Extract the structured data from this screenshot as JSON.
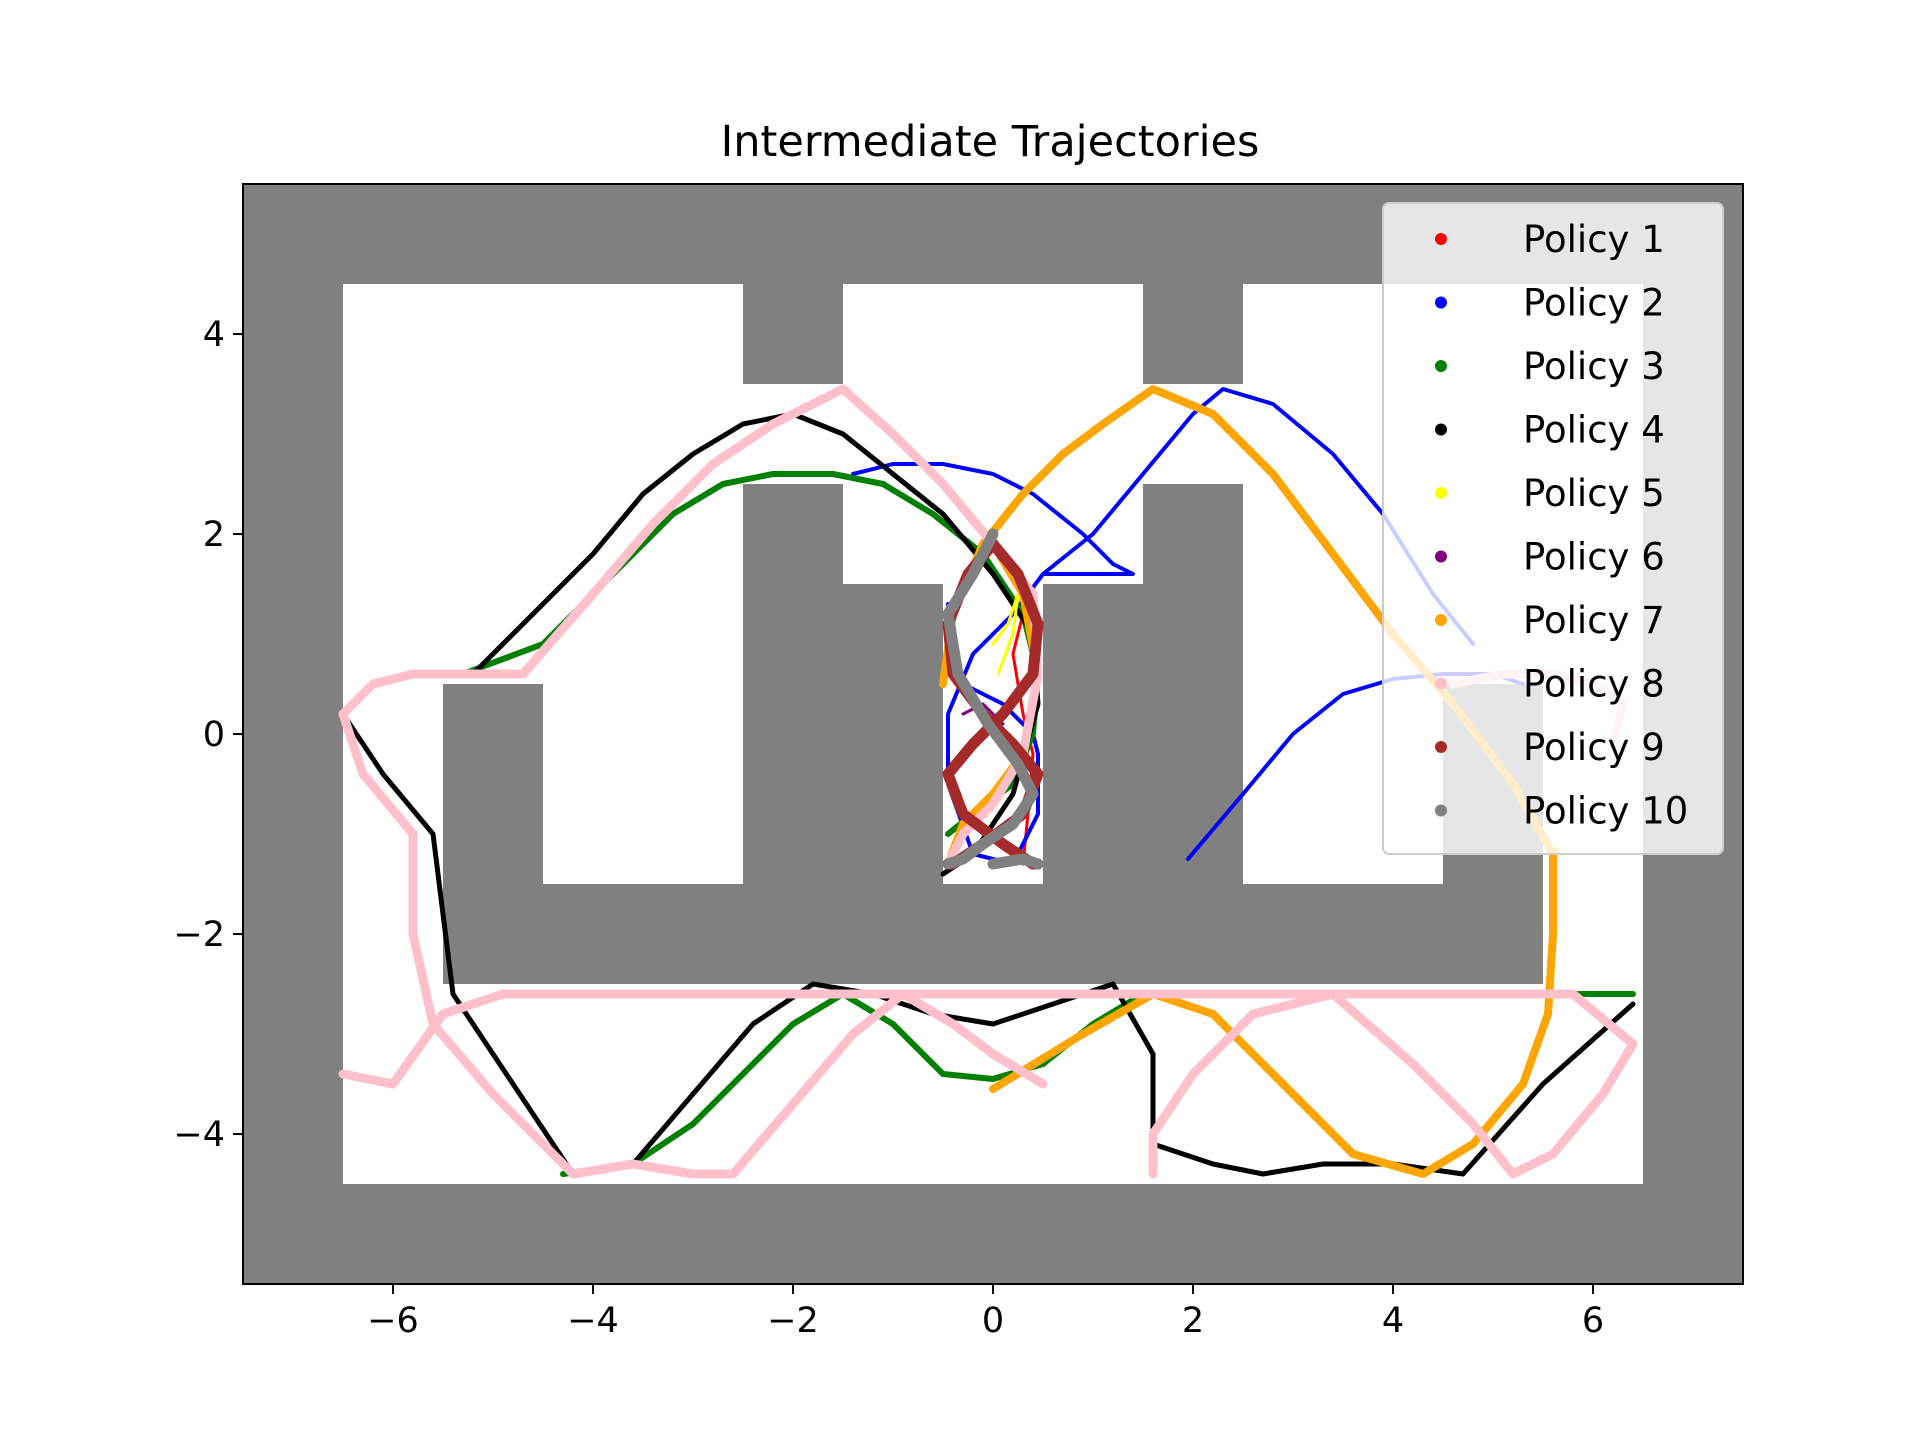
{
  "chart_data": {
    "type": "scatter",
    "title": "Intermediate Trajectories",
    "xlabel": "",
    "ylabel": "",
    "xlim": [
      -7.5,
      7.5
    ],
    "ylim": [
      -5.5,
      5.5
    ],
    "xticks": [
      -6,
      -4,
      -2,
      0,
      2,
      4,
      6
    ],
    "yticks": [
      -4,
      -2,
      0,
      2,
      4
    ],
    "xtick_labels": [
      "−6",
      "−4",
      "−2",
      "0",
      "2",
      "4",
      "6"
    ],
    "ytick_labels": [
      "−4",
      "−2",
      "0",
      "2",
      "4"
    ],
    "grid": false,
    "legend_position": "top-right",
    "background_color": "#808080",
    "free_space_color": "#ffffff",
    "free_space": [
      {
        "x0": -6.5,
        "x1": -2.5,
        "y0": -1.5,
        "y1": 4.5
      },
      {
        "x0": -2.5,
        "x1": -1.5,
        "y0": 2.5,
        "y1": 3.5
      },
      {
        "x0": -1.5,
        "x1": 1.5,
        "y0": 2.5,
        "y1": 4.5
      },
      {
        "x0": -1.5,
        "x1": -0.5,
        "y0": 1.5,
        "y1": 2.5
      },
      {
        "x0": -0.5,
        "x1": 0.5,
        "y0": -1.5,
        "y1": 2.5
      },
      {
        "x0": 0.5,
        "x1": 1.5,
        "y0": 1.5,
        "y1": 2.5
      },
      {
        "x0": 1.5,
        "x1": 2.5,
        "y0": 2.5,
        "y1": 3.5
      },
      {
        "x0": 2.5,
        "x1": 6.5,
        "y0": -1.5,
        "y1": 4.5
      },
      {
        "x0": -6.5,
        "x1": 6.5,
        "y0": -4.5,
        "y1": -2.5
      },
      {
        "x0": -6.5,
        "x1": -5.5,
        "y0": -2.5,
        "y1": -1.5
      },
      {
        "x0": 5.5,
        "x1": 6.5,
        "y0": -2.5,
        "y1": -1.5
      },
      {
        "x0": -0.5,
        "x1": 0.5,
        "y0": -3.5,
        "y1": -4.5
      }
    ],
    "obstacles_in_free_space": [
      {
        "x0": -5.5,
        "x1": -4.5,
        "y0": -1.5,
        "y1": 0.5
      },
      {
        "x0": -2.5,
        "x1": -1.5,
        "y0": 0.5,
        "y1": 2.5
      },
      {
        "x0": -1.5,
        "x1": -0.5,
        "y0": -1.5,
        "y1": 1.5
      },
      {
        "x0": 0.5,
        "x1": 1.5,
        "y0": -1.5,
        "y1": 1.5
      },
      {
        "x0": 1.5,
        "x1": 2.5,
        "y0": 0.5,
        "y1": 2.5
      },
      {
        "x0": 4.5,
        "x1": 5.5,
        "y0": -1.5,
        "y1": 0.5
      },
      {
        "x0": -2.5,
        "x1": -1.5,
        "y0": 3.5,
        "y1": 4.5
      },
      {
        "x0": 1.5,
        "x1": 2.5,
        "y0": 3.5,
        "y1": 4.5
      }
    ],
    "series": [
      {
        "name": "Policy 1",
        "color": "#ff0000",
        "width": 3,
        "x": [
          0.3,
          0.35,
          0.4,
          0.3,
          0.2,
          0.3,
          0.35
        ],
        "y": [
          -1.3,
          -0.8,
          -0.2,
          0.2,
          0.8,
          1.2,
          1.5
        ]
      },
      {
        "name": "Policy 2",
        "color": "#0000ff",
        "width": 4,
        "x": [
          -1.4,
          -1.0,
          -0.5,
          0.0,
          0.4,
          0.9,
          1.2,
          1.4,
          1.0,
          0.5,
          0.2,
          -0.2,
          -0.45,
          -0.45,
          -0.2,
          0.2,
          0.45,
          0.45,
          0.4,
          0.1,
          -0.3,
          -0.45
        ],
        "y": [
          2.6,
          2.7,
          2.7,
          2.6,
          2.4,
          2.0,
          1.7,
          1.6,
          1.6,
          1.6,
          1.2,
          0.8,
          0.2,
          -0.5,
          -1.2,
          -1.3,
          -0.8,
          -0.2,
          0.0,
          0.3,
          0.5,
          1.3
        ]
      },
      {
        "name": "Policy 2",
        "color": "#0000ff",
        "width": 4,
        "legend": false,
        "x": [
          0.5,
          1.0,
          1.5,
          2.0,
          2.3,
          2.8,
          3.4,
          3.9,
          4.4,
          4.8
        ],
        "y": [
          1.6,
          2.0,
          2.6,
          3.2,
          3.45,
          3.3,
          2.8,
          2.2,
          1.4,
          0.9
        ]
      },
      {
        "name": "Policy 2",
        "color": "#0000ff",
        "width": 4,
        "legend": false,
        "x": [
          1.95,
          2.5,
          3.0,
          3.5,
          4.0,
          4.5,
          5.0,
          5.3
        ],
        "y": [
          -1.25,
          -0.6,
          0.0,
          0.4,
          0.55,
          0.6,
          0.6,
          0.5
        ]
      },
      {
        "name": "Policy 3",
        "color": "#008000",
        "width": 6,
        "x": [
          -5.3,
          -4.5,
          -3.8,
          -3.2,
          -2.7,
          -2.2,
          -1.6,
          -1.1,
          -0.6,
          -0.1,
          0.3,
          0.45,
          0.4,
          0.2,
          -0.2,
          -0.45
        ],
        "y": [
          0.6,
          0.9,
          1.6,
          2.2,
          2.5,
          2.6,
          2.6,
          2.5,
          2.2,
          1.8,
          1.2,
          0.6,
          0.0,
          -0.5,
          -0.8,
          -1.0
        ]
      },
      {
        "name": "Policy 3",
        "color": "#008000",
        "width": 6,
        "legend": false,
        "x": [
          -4.3,
          -3.6,
          -3.0,
          -2.5,
          -2.0,
          -1.5,
          -1.0,
          -0.5,
          0.0,
          0.5,
          1.0,
          1.5,
          2.5,
          3.5,
          4.5,
          5.5,
          6.4
        ],
        "y": [
          -4.4,
          -4.3,
          -3.9,
          -3.4,
          -2.9,
          -2.6,
          -2.9,
          -3.4,
          -3.45,
          -3.3,
          -2.9,
          -2.6,
          -2.6,
          -2.6,
          -2.6,
          -2.6,
          -2.6
        ]
      },
      {
        "name": "Policy 4",
        "color": "#000000",
        "width": 5,
        "x": [
          -5.2,
          -4.6,
          -4.0,
          -3.5,
          -3.0,
          -2.5,
          -2.0,
          -1.5,
          -1.0,
          -0.5,
          0.0,
          0.4,
          0.45,
          0.2,
          -0.2,
          -0.5
        ],
        "y": [
          0.6,
          1.2,
          1.8,
          2.4,
          2.8,
          3.1,
          3.2,
          3.0,
          2.6,
          2.2,
          1.6,
          1.0,
          0.3,
          -0.6,
          -1.2,
          -1.4
        ]
      },
      {
        "name": "Policy 4",
        "color": "#000000",
        "width": 5,
        "legend": false,
        "x": [
          -6.5,
          -6.1,
          -5.6,
          -5.4,
          -5.0,
          -4.6,
          -4.2,
          -3.6,
          -3.0,
          -2.4,
          -1.8,
          -1.2,
          -0.6,
          0.0,
          0.6,
          1.2,
          1.6,
          1.6,
          2.2,
          2.7,
          3.3,
          4.0,
          4.7,
          5.5,
          6.4
        ],
        "y": [
          0.2,
          -0.4,
          -1.0,
          -2.6,
          -3.2,
          -3.8,
          -4.4,
          -4.3,
          -3.6,
          -2.9,
          -2.5,
          -2.6,
          -2.8,
          -2.9,
          -2.7,
          -2.5,
          -3.2,
          -4.1,
          -4.3,
          -4.4,
          -4.3,
          -4.3,
          -4.4,
          -3.5,
          -2.7
        ]
      },
      {
        "name": "Policy 5",
        "color": "#ffff00",
        "width": 3,
        "x": [
          0.0,
          0.15,
          0.25,
          0.2,
          0.05
        ],
        "y": [
          0.9,
          1.1,
          1.4,
          1.0,
          0.6
        ]
      },
      {
        "name": "Policy 6",
        "color": "#800080",
        "width": 3,
        "x": [
          -0.3,
          -0.1,
          0.1
        ],
        "y": [
          0.2,
          0.3,
          0.1
        ]
      },
      {
        "name": "Policy 7",
        "color": "#ffa500",
        "width": 8,
        "x": [
          -0.5,
          -0.4,
          -0.1,
          0.3,
          0.7,
          1.1,
          1.6,
          2.2,
          2.8,
          3.4,
          4.0,
          4.6,
          5.2,
          5.6,
          5.6,
          5.55,
          5.3,
          4.8,
          4.3,
          3.6,
          2.8,
          2.2,
          1.6,
          0.9,
          0.0
        ],
        "y": [
          0.5,
          1.2,
          1.9,
          2.4,
          2.8,
          3.1,
          3.45,
          3.2,
          2.6,
          1.8,
          1.0,
          0.3,
          -0.5,
          -1.2,
          -2.0,
          -2.8,
          -3.5,
          -4.1,
          -4.4,
          -4.2,
          -3.4,
          -2.8,
          -2.6,
          -3.0,
          -3.55
        ]
      },
      {
        "name": "Policy 7",
        "color": "#ffa500",
        "width": 8,
        "legend": false,
        "x": [
          0.0,
          0.3,
          0.45,
          0.3,
          0.0,
          -0.3,
          -0.45
        ],
        "y": [
          1.9,
          1.4,
          0.6,
          -0.2,
          -0.6,
          -0.9,
          -1.3
        ]
      },
      {
        "name": "Policy 8",
        "color": "#ffc0cb",
        "width": 9,
        "x": [
          -6.5,
          -6.2,
          -5.8,
          -5.2,
          -4.7,
          -4.0,
          -3.4,
          -2.8,
          -2.2,
          -1.5,
          -1.0,
          -0.5,
          0.0,
          0.4,
          0.45,
          0.3,
          0.0,
          -0.3,
          -0.45
        ],
        "y": [
          0.2,
          0.5,
          0.6,
          0.6,
          0.6,
          1.4,
          2.1,
          2.7,
          3.1,
          3.45,
          3.0,
          2.5,
          1.9,
          1.4,
          0.6,
          -0.2,
          -0.7,
          -1.0,
          -1.3
        ]
      },
      {
        "name": "Policy 8",
        "color": "#ffc0cb",
        "width": 9,
        "legend": false,
        "x": [
          -6.5,
          -6.3,
          -5.8,
          -5.8,
          -5.6,
          -5.0,
          -4.4,
          -4.2,
          -3.6,
          -3.0,
          -2.6,
          -2.0,
          -1.4,
          -0.9,
          -0.4,
          0.0,
          0.5
        ],
        "y": [
          0.2,
          -0.4,
          -1.0,
          -2.0,
          -2.9,
          -3.6,
          -4.2,
          -4.4,
          -4.3,
          -4.4,
          -4.4,
          -3.7,
          -3.0,
          -2.6,
          -2.9,
          -3.2,
          -3.5
        ]
      },
      {
        "name": "Policy 8",
        "color": "#ffc0cb",
        "width": 9,
        "legend": false,
        "x": [
          -6.5,
          -6.0,
          -5.5,
          -4.9,
          -4.3,
          -3.6,
          -3.0,
          -2.2,
          -1.4,
          -0.6,
          0.3,
          1.2,
          2.1,
          3.0,
          4.0,
          5.0,
          5.8,
          6.4,
          6.1,
          5.6,
          5.2,
          4.8,
          4.2,
          3.4,
          2.6,
          2.0,
          1.6,
          1.6
        ],
        "y": [
          -3.4,
          -3.5,
          -2.8,
          -2.6,
          -2.6,
          -2.6,
          -2.6,
          -2.6,
          -2.6,
          -2.6,
          -2.6,
          -2.6,
          -2.6,
          -2.6,
          -2.6,
          -2.6,
          -2.6,
          -3.1,
          -3.6,
          -4.2,
          -4.4,
          -3.9,
          -3.3,
          -2.6,
          -2.8,
          -3.4,
          -4.0,
          -4.4
        ]
      },
      {
        "name": "Policy 8",
        "color": "#ffc0cb",
        "width": 9,
        "legend": false,
        "x": [
          4.6,
          5.1,
          5.6,
          6.0,
          6.3,
          6.2
        ],
        "y": [
          0.5,
          0.6,
          0.6,
          0.5,
          0.3,
          -0.1
        ]
      },
      {
        "name": "Policy 9",
        "color": "#a52a2a",
        "width": 11,
        "x": [
          0.0,
          0.25,
          0.45,
          0.4,
          0.1,
          -0.2,
          -0.45,
          -0.3,
          0.1,
          0.4,
          0.45
        ],
        "y": [
          1.9,
          1.6,
          1.1,
          0.6,
          0.2,
          -0.1,
          -0.4,
          -0.8,
          -1.1,
          -1.3,
          -1.3
        ]
      },
      {
        "name": "Policy 9",
        "color": "#a52a2a",
        "width": 11,
        "legend": false,
        "x": [
          0.0,
          -0.25,
          -0.45,
          -0.4,
          -0.1,
          0.2,
          0.45,
          0.3,
          -0.1,
          -0.4,
          -0.45
        ],
        "y": [
          1.9,
          1.6,
          1.1,
          0.6,
          0.2,
          -0.1,
          -0.4,
          -0.8,
          -1.1,
          -1.3,
          -1.3
        ]
      },
      {
        "name": "Policy 10",
        "color": "#808080",
        "width": 11,
        "x": [
          0.0,
          -0.2,
          -0.45,
          -0.35,
          -0.05,
          0.25,
          0.4,
          0.2,
          -0.1,
          -0.3,
          -0.45
        ],
        "y": [
          2.0,
          1.6,
          1.2,
          0.6,
          0.1,
          -0.3,
          -0.6,
          -0.9,
          -1.1,
          -1.25,
          -1.3
        ]
      },
      {
        "name": "Policy 10",
        "color": "#808080",
        "width": 11,
        "legend": false,
        "x": [
          0.45,
          0.3,
          0.0
        ],
        "y": [
          -1.3,
          -1.25,
          -1.3
        ]
      }
    ],
    "legend": [
      {
        "label": "Policy 1",
        "color": "#ff0000"
      },
      {
        "label": "Policy 2",
        "color": "#0000ff"
      },
      {
        "label": "Policy 3",
        "color": "#008000"
      },
      {
        "label": "Policy 4",
        "color": "#000000"
      },
      {
        "label": "Policy 5",
        "color": "#ffff00"
      },
      {
        "label": "Policy 6",
        "color": "#800080"
      },
      {
        "label": "Policy 7",
        "color": "#ffa500"
      },
      {
        "label": "Policy 8",
        "color": "#ffc0cb"
      },
      {
        "label": "Policy 9",
        "color": "#a52a2a"
      },
      {
        "label": "Policy 10",
        "color": "#808080"
      }
    ]
  }
}
